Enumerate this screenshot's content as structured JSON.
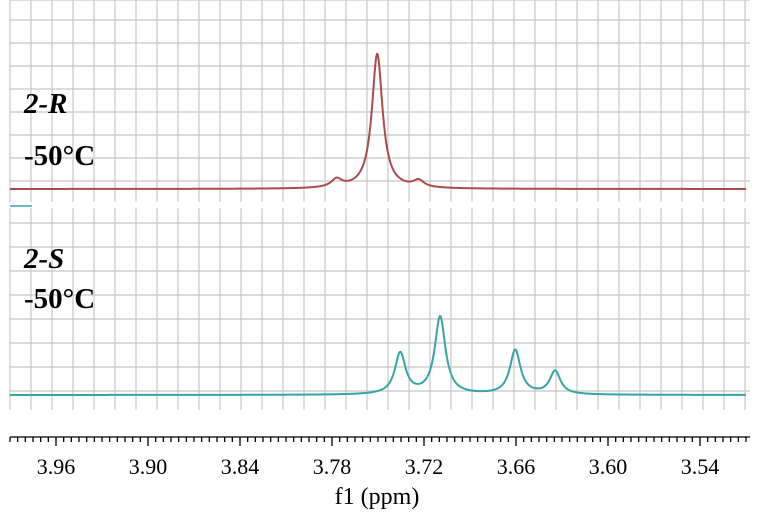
{
  "chart_data": [
    {
      "type": "line",
      "name_label": "2-R",
      "temp_label": "-50°C",
      "color": "#a84c4c",
      "xlim": [
        3.99,
        3.51
      ],
      "x_reversed": true,
      "xlabel": "f1 (ppm)",
      "x_ticks": [
        "3.96",
        "3.90",
        "3.84",
        "3.78",
        "3.72",
        "3.66",
        "3.60",
        "3.54"
      ],
      "peaks": [
        {
          "x": 3.777,
          "intensity": 0.06
        },
        {
          "x": 3.7505,
          "intensity": 1.0
        },
        {
          "x": 3.7235,
          "intensity": 0.05
        }
      ]
    },
    {
      "type": "line",
      "name_label": "2-S",
      "temp_label": "-50°C",
      "color": "#3aa3a5",
      "xlim": [
        3.99,
        3.51
      ],
      "x_reversed": true,
      "xlabel": "f1 (ppm)",
      "x_ticks": [
        "3.96",
        "3.90",
        "3.84",
        "3.78",
        "3.72",
        "3.66",
        "3.60",
        "3.54"
      ],
      "peaks": [
        {
          "x": 3.7355,
          "intensity": 0.53
        },
        {
          "x": 3.7095,
          "intensity": 1.0
        },
        {
          "x": 3.6605,
          "intensity": 0.57
        },
        {
          "x": 3.6345,
          "intensity": 0.3
        }
      ]
    }
  ]
}
